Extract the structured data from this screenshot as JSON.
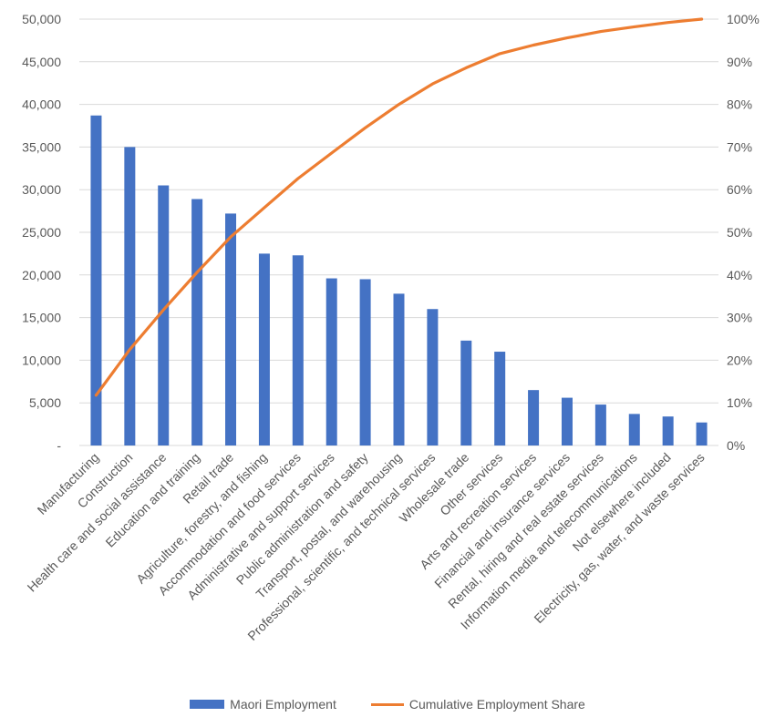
{
  "colors": {
    "bar": "#4472c4",
    "line": "#ed7d31",
    "grid": "#d9d9d9",
    "text": "#595959"
  },
  "chart_data": {
    "type": "bar",
    "categories": [
      "Manufacturing",
      "Construction",
      "Health care and social assistance",
      "Education and training",
      "Retail trade",
      "Agriculture, forestry, and fishing",
      "Accommodation and food services",
      "Administrative and support services",
      "Public administration and safety",
      "Transport, postal, and warehousing",
      "Professional, scientific, and technical services",
      "Wholesale trade",
      "Other services",
      "Arts and recreation services",
      "Financial and insurance services",
      "Rental, hiring and real estate services",
      "Information media and telecommunications",
      "Not elsewhere included",
      "Electricity, gas, water, and waste services"
    ],
    "series": [
      {
        "name": "Maori Employment",
        "type": "bar",
        "axis": "left",
        "values": [
          38700,
          35000,
          30500,
          28900,
          27200,
          22500,
          22300,
          19600,
          19500,
          17800,
          16000,
          12300,
          11000,
          6500,
          5600,
          4800,
          3700,
          3400,
          2700
        ]
      },
      {
        "name": "Cumulative Employment Share",
        "type": "line",
        "axis": "right",
        "values": [
          11.8,
          22.5,
          31.8,
          40.6,
          48.9,
          55.8,
          62.6,
          68.6,
          74.5,
          80.0,
          84.8,
          88.6,
          91.9,
          93.9,
          95.6,
          97.1,
          98.2,
          99.2,
          100
        ]
      }
    ],
    "y_left": {
      "ylim": [
        0,
        50000
      ],
      "ticks": [
        "-",
        "5,000",
        "10,000",
        "15,000",
        "20,000",
        "25,000",
        "30,000",
        "35,000",
        "40,000",
        "45,000",
        "50,000"
      ]
    },
    "y_right": {
      "ylim": [
        0,
        100
      ],
      "ticks": [
        "0%",
        "10%",
        "20%",
        "30%",
        "40%",
        "50%",
        "60%",
        "70%",
        "80%",
        "90%",
        "100%"
      ]
    },
    "grid": true,
    "legend": {
      "position": "bottom",
      "items": [
        "Maori Employment",
        "Cumulative Employment Share"
      ]
    }
  }
}
